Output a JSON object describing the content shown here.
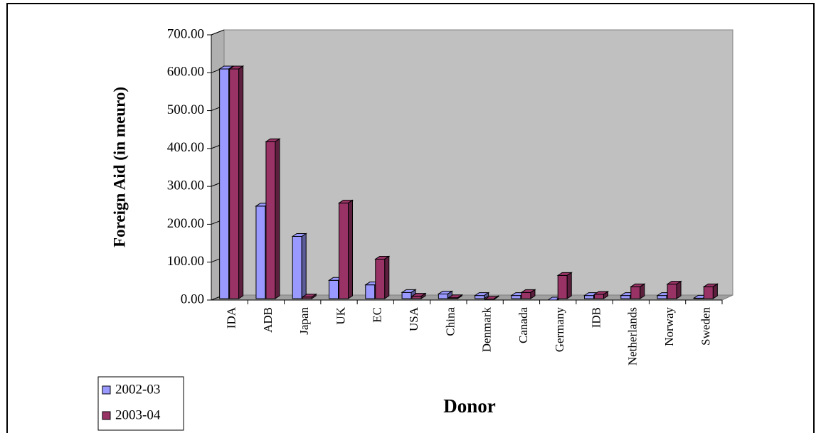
{
  "chart_data": {
    "type": "bar3d",
    "y_label": "Foreign Aid (in meuro)",
    "x_label": "Donor",
    "categories": [
      "IDA",
      "ADB",
      "Japan",
      "UK",
      "EC",
      "USA",
      "China",
      "Denmark",
      "Canada",
      "Germany",
      "IDB",
      "Netherlands",
      "Norway",
      "Sweden"
    ],
    "series": [
      {
        "name": "2002-03",
        "color": "#9999ff",
        "values": [
          610,
          248,
          168,
          52,
          40,
          20,
          16,
          12,
          12,
          0,
          12,
          12,
          12,
          5
        ]
      },
      {
        "name": "2003-04",
        "color": "#993366",
        "values": [
          610,
          418,
          8,
          256,
          108,
          10,
          6,
          2,
          20,
          65,
          15,
          35,
          42,
          35
        ]
      }
    ],
    "ylim": [
      0,
      700
    ],
    "yticks": [
      {
        "value": 0,
        "label": "0.00"
      },
      {
        "value": 100,
        "label": "100.00"
      },
      {
        "value": 200,
        "label": "200.00"
      },
      {
        "value": 300,
        "label": "300.00"
      },
      {
        "value": 400,
        "label": "400.00"
      },
      {
        "value": 500,
        "label": "500.00"
      },
      {
        "value": 600,
        "label": "600.00"
      },
      {
        "value": 700,
        "label": "700.00"
      }
    ],
    "legend": "bottom-left"
  }
}
